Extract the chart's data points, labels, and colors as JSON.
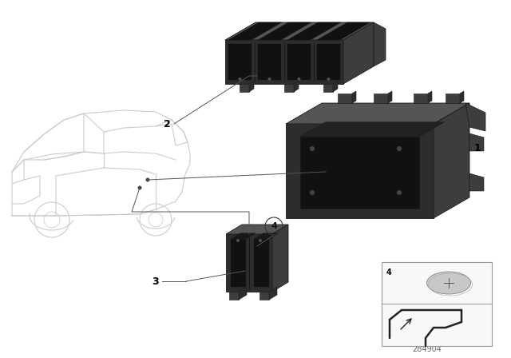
{
  "background_color": "#ffffff",
  "part_number": "284904",
  "car_color": "#cccccc",
  "car_lw": 0.8,
  "parts_dark": "#2d2d2d",
  "parts_mid": "#3d3d3d",
  "parts_light": "#555555",
  "parts_edge": "#1a1a1a",
  "leader_color": "#555555",
  "leader_lw": 0.7,
  "label_fontsize": 9,
  "pn_fontsize": 7
}
